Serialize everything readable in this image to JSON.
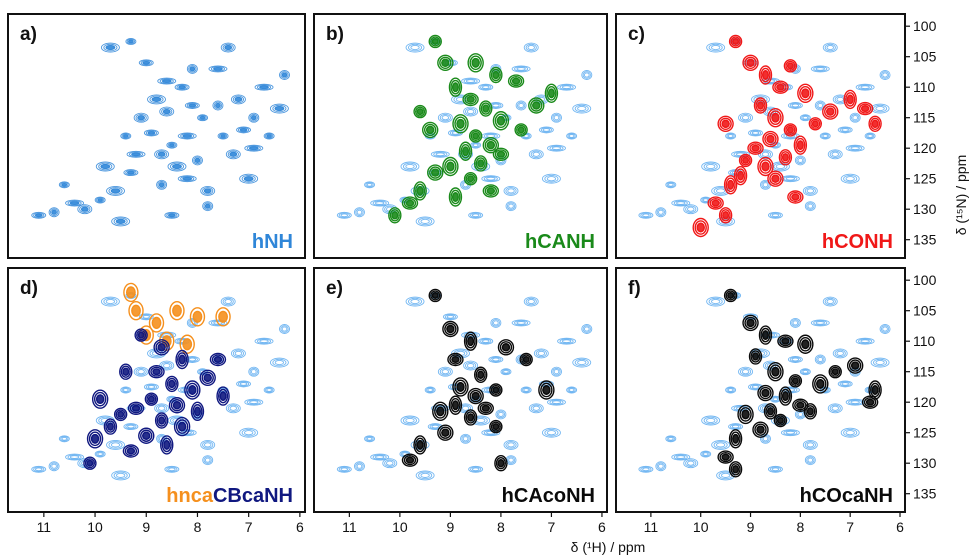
{
  "chart_data": {
    "type": "scatter",
    "subtype": "2D NMR spectra panel grid (6 panels)",
    "xlabel": "δ (¹H) / ppm",
    "ylabel": "δ (¹⁵N) / ppm",
    "x_ticks": [
      11,
      10,
      9,
      8,
      7,
      6
    ],
    "y_ticks": [
      100,
      105,
      110,
      115,
      120,
      125,
      130,
      135
    ],
    "xlim": [
      11.7,
      5.9
    ],
    "ylim": [
      98,
      138
    ],
    "x_reversed": true,
    "y_reversed": true,
    "grid": false,
    "colors": {
      "reference": "#5aaaf0",
      "reference_dark": "#2f86d8",
      "hCANH": "#1a8a1a",
      "hCONH": "#f01818",
      "CB_orange": "#f5901e",
      "CB_navy": "#101880",
      "black": "#0a0a0a"
    },
    "reference_peaks": [
      [
        8.5,
        119.5
      ],
      [
        8.7,
        121
      ],
      [
        8.2,
        118
      ],
      [
        8.0,
        122
      ],
      [
        8.9,
        117.5
      ],
      [
        8.4,
        123
      ],
      [
        7.9,
        115
      ],
      [
        8.6,
        114
      ],
      [
        9.2,
        121
      ],
      [
        7.6,
        113
      ],
      [
        8.3,
        110
      ],
      [
        8.8,
        112
      ],
      [
        7.5,
        118
      ],
      [
        7.2,
        112
      ],
      [
        6.7,
        110
      ],
      [
        6.9,
        115
      ],
      [
        7.1,
        117
      ],
      [
        6.4,
        113.5
      ],
      [
        6.6,
        118
      ],
      [
        7.8,
        127
      ],
      [
        8.2,
        125
      ],
      [
        8.7,
        126
      ],
      [
        9.3,
        124
      ],
      [
        9.6,
        127
      ],
      [
        9.9,
        128.5
      ],
      [
        10.2,
        130
      ],
      [
        10.4,
        129
      ],
      [
        10.8,
        130.5
      ],
      [
        11.1,
        131
      ],
      [
        9.8,
        123
      ],
      [
        9.4,
        118
      ],
      [
        9.1,
        115
      ],
      [
        8.6,
        109
      ],
      [
        8.1,
        107
      ],
      [
        9.0,
        106
      ],
      [
        9.7,
        103.5
      ],
      [
        9.3,
        102.5
      ],
      [
        7.4,
        103.5
      ],
      [
        7.6,
        107
      ],
      [
        7.8,
        129.5
      ],
      [
        8.5,
        131
      ],
      [
        9.5,
        132
      ],
      [
        10.6,
        126
      ],
      [
        7.3,
        121
      ],
      [
        6.9,
        120
      ],
      [
        6.3,
        108
      ],
      [
        8.1,
        113
      ],
      [
        7.0,
        125
      ]
    ],
    "panels": [
      {
        "id": "a",
        "letter": "a)",
        "name": "hNH",
        "color": "#2f86d8",
        "overlay_peaks": [],
        "overlay_color": ""
      },
      {
        "id": "b",
        "letter": "b)",
        "name": "hCANH",
        "color": "#1a8a1a",
        "overlay_color": "#1a8a1a",
        "overlay_peaks": [
          [
            9.3,
            102.5
          ],
          [
            9.1,
            106
          ],
          [
            8.9,
            110
          ],
          [
            8.6,
            112
          ],
          [
            8.3,
            113.5
          ],
          [
            8.8,
            116
          ],
          [
            8.5,
            118
          ],
          [
            8.2,
            119.5
          ],
          [
            8.7,
            120.5
          ],
          [
            8.0,
            121
          ],
          [
            8.4,
            122.5
          ],
          [
            9.0,
            123
          ],
          [
            8.6,
            125
          ],
          [
            9.3,
            124
          ],
          [
            9.6,
            127
          ],
          [
            9.8,
            129
          ],
          [
            10.1,
            131
          ],
          [
            8.0,
            115.5
          ],
          [
            7.6,
            117
          ],
          [
            7.3,
            113
          ],
          [
            7.0,
            111
          ],
          [
            7.7,
            109
          ],
          [
            8.1,
            108
          ],
          [
            8.5,
            106
          ],
          [
            9.6,
            114
          ],
          [
            9.4,
            117
          ],
          [
            8.9,
            128
          ],
          [
            8.2,
            127
          ]
        ]
      },
      {
        "id": "c",
        "letter": "c)",
        "name": "hCONH",
        "color": "#f01818",
        "overlay_color": "#f01818",
        "overlay_peaks": [
          [
            9.3,
            102.5
          ],
          [
            9.0,
            106
          ],
          [
            8.7,
            108
          ],
          [
            8.4,
            110
          ],
          [
            8.8,
            113
          ],
          [
            8.5,
            115
          ],
          [
            8.2,
            117
          ],
          [
            8.6,
            118.5
          ],
          [
            8.0,
            119.5
          ],
          [
            8.9,
            120
          ],
          [
            8.3,
            121.5
          ],
          [
            8.7,
            123
          ],
          [
            9.1,
            122
          ],
          [
            8.5,
            125
          ],
          [
            9.4,
            126
          ],
          [
            9.7,
            129
          ],
          [
            9.5,
            131
          ],
          [
            10.0,
            133
          ],
          [
            7.7,
            116
          ],
          [
            7.4,
            114
          ],
          [
            7.0,
            112
          ],
          [
            6.7,
            113.5
          ],
          [
            6.5,
            116
          ],
          [
            7.9,
            111
          ],
          [
            8.2,
            106.5
          ],
          [
            9.5,
            116
          ],
          [
            9.2,
            124.5
          ],
          [
            8.1,
            128
          ]
        ]
      },
      {
        "id": "d",
        "letter": "d)",
        "name": "hncaCBcaNH",
        "color": "#101880",
        "overlay_color": "#101880",
        "name_colors": [
          "#f5901e",
          "#101880"
        ],
        "orange_peaks": [
          [
            9.3,
            102
          ],
          [
            9.2,
            105
          ],
          [
            8.8,
            107
          ],
          [
            8.4,
            105
          ],
          [
            8.0,
            106
          ],
          [
            7.5,
            106
          ],
          [
            8.6,
            110
          ],
          [
            8.2,
            110.5
          ],
          [
            9.0,
            109
          ]
        ],
        "overlay_peaks": [
          [
            9.1,
            109
          ],
          [
            8.7,
            111
          ],
          [
            8.3,
            113
          ],
          [
            8.8,
            115
          ],
          [
            8.5,
            117
          ],
          [
            8.1,
            118
          ],
          [
            8.9,
            119.5
          ],
          [
            8.4,
            120.5
          ],
          [
            8.0,
            121.5
          ],
          [
            9.2,
            121
          ],
          [
            8.7,
            123
          ],
          [
            8.3,
            124
          ],
          [
            9.5,
            122
          ],
          [
            9.0,
            125.5
          ],
          [
            8.6,
            127
          ],
          [
            9.3,
            128
          ],
          [
            9.7,
            124
          ],
          [
            10.0,
            126
          ],
          [
            10.1,
            130
          ],
          [
            7.8,
            116
          ],
          [
            7.5,
            119
          ],
          [
            7.6,
            113
          ],
          [
            9.4,
            115
          ],
          [
            9.9,
            119.5
          ]
        ]
      },
      {
        "id": "e",
        "letter": "e)",
        "name": "hCAcoNH",
        "color": "#0a0a0a",
        "overlay_color": "#0a0a0a",
        "overlay_peaks": [
          [
            9.3,
            102.5
          ],
          [
            9.0,
            108
          ],
          [
            8.6,
            110
          ],
          [
            8.9,
            113
          ],
          [
            8.4,
            115.5
          ],
          [
            8.8,
            117.5
          ],
          [
            8.1,
            118
          ],
          [
            8.5,
            119
          ],
          [
            8.9,
            120.5
          ],
          [
            8.3,
            121
          ],
          [
            8.6,
            122.5
          ],
          [
            9.2,
            121.5
          ],
          [
            8.1,
            124
          ],
          [
            9.1,
            125
          ],
          [
            9.6,
            127
          ],
          [
            9.8,
            129.5
          ],
          [
            8.0,
            130
          ],
          [
            7.1,
            118
          ],
          [
            7.5,
            113
          ],
          [
            7.9,
            111
          ]
        ]
      },
      {
        "id": "f",
        "letter": "f)",
        "name": "hCOcaNH",
        "color": "#0a0a0a",
        "overlay_color": "#0a0a0a",
        "overlay_peaks": [
          [
            9.4,
            102.5
          ],
          [
            9.0,
            107
          ],
          [
            8.7,
            109
          ],
          [
            8.3,
            110
          ],
          [
            8.9,
            112.5
          ],
          [
            8.5,
            115
          ],
          [
            8.1,
            116.5
          ],
          [
            8.7,
            118.5
          ],
          [
            8.3,
            119
          ],
          [
            8.0,
            120.5
          ],
          [
            8.6,
            121.5
          ],
          [
            9.1,
            122
          ],
          [
            8.4,
            123
          ],
          [
            8.8,
            124.5
          ],
          [
            9.3,
            126
          ],
          [
            9.5,
            129
          ],
          [
            9.3,
            131
          ],
          [
            7.6,
            117
          ],
          [
            7.3,
            115
          ],
          [
            6.9,
            114
          ],
          [
            6.5,
            118
          ],
          [
            6.6,
            120
          ],
          [
            7.8,
            121.5
          ],
          [
            7.9,
            110.5
          ]
        ]
      }
    ]
  }
}
